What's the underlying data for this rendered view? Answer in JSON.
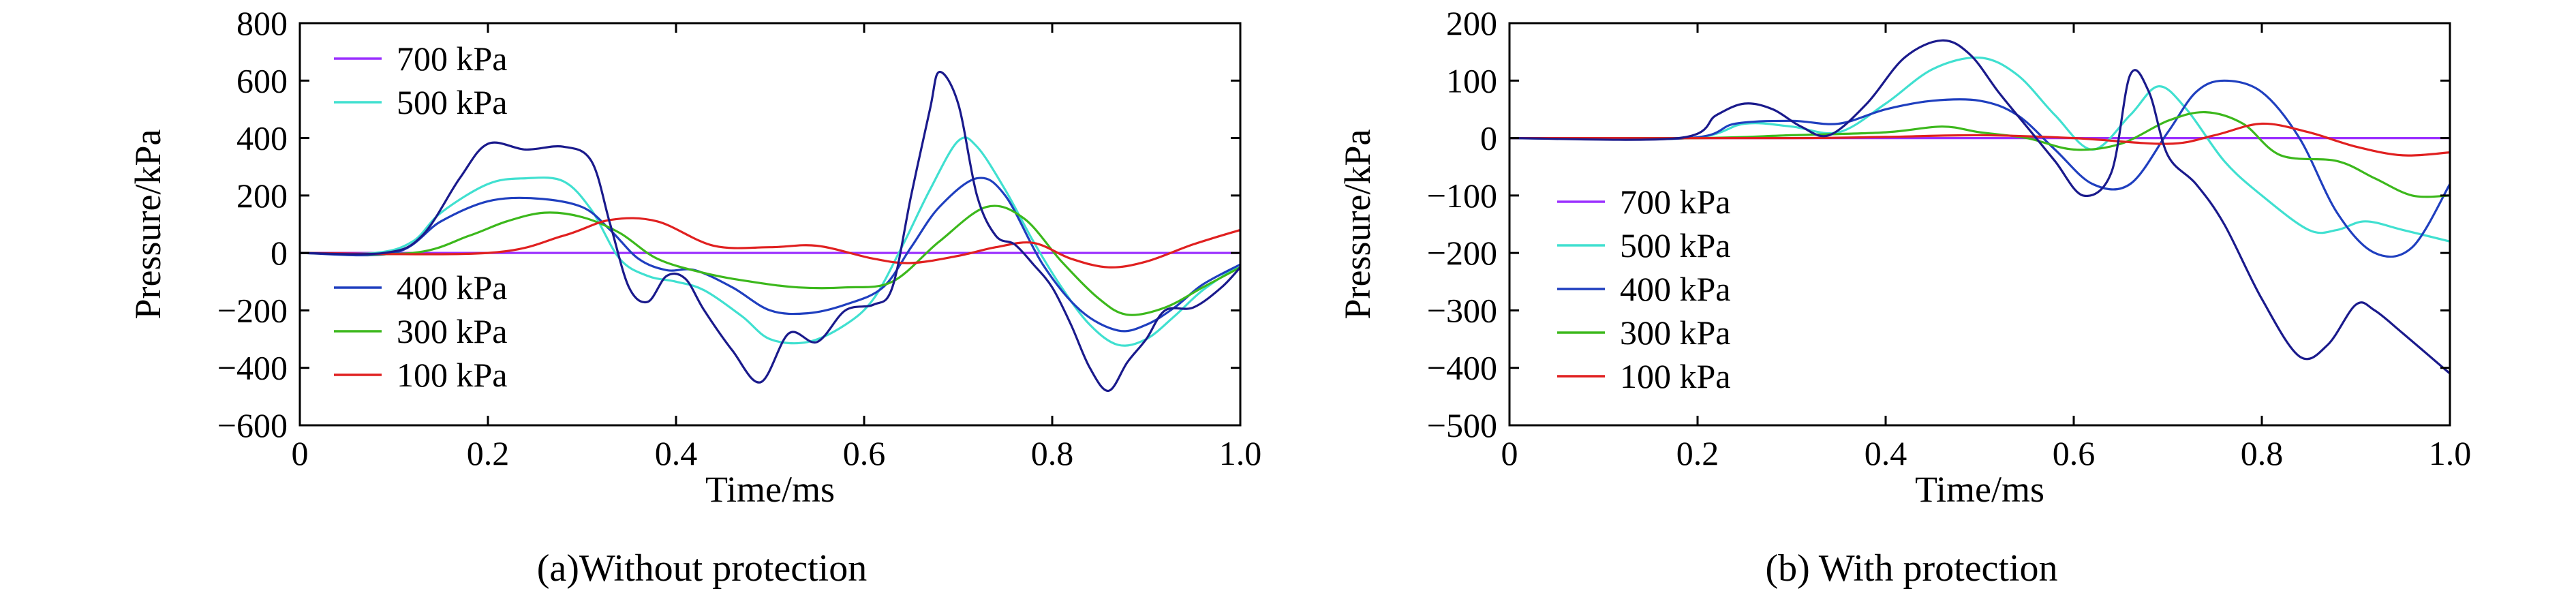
{
  "chart_data": [
    {
      "type": "line",
      "caption": "(a)Without protection",
      "xlabel": "Time/ms",
      "ylabel": "Pressure/kPa",
      "xlim": [
        0,
        1.0
      ],
      "ylim": [
        -600,
        800
      ],
      "xticks": [
        0,
        0.2,
        0.4,
        0.6,
        0.8,
        1.0
      ],
      "xtick_labels": [
        "0",
        "0.2",
        "0.4",
        "0.6",
        "0.8",
        "1.0"
      ],
      "yticks": [
        -600,
        -400,
        -200,
        0,
        200,
        400,
        600,
        800
      ],
      "ytick_labels": [
        "−600",
        "−400",
        "−200",
        "0",
        "200",
        "400",
        "600",
        "800"
      ],
      "legend_groups": [
        {
          "placement": "top-left",
          "entries": [
            "700 kPa",
            "500 kPa"
          ]
        },
        {
          "placement": "bottom-left",
          "entries": [
            "400 kPa",
            "300 kPa",
            "100 kPa"
          ]
        }
      ],
      "series": [
        {
          "name": "700 kPa",
          "color": "#9b30ff",
          "x": [
            0,
            0.1,
            0.2,
            0.4,
            0.6,
            0.8,
            1.0
          ],
          "y": [
            0,
            0,
            0,
            0,
            0,
            0,
            0
          ]
        },
        {
          "name": "500 kPa",
          "color": "#40e0d0",
          "x": [
            0,
            0.08,
            0.12,
            0.15,
            0.2,
            0.24,
            0.28,
            0.31,
            0.34,
            0.37,
            0.4,
            0.43,
            0.47,
            0.5,
            0.54,
            0.58,
            0.61,
            0.64,
            0.67,
            0.7,
            0.72,
            0.75,
            0.78,
            0.81,
            0.84,
            0.87,
            0.9,
            0.93,
            0.96,
            1.0
          ],
          "y": [
            0,
            0,
            40,
            140,
            240,
            260,
            250,
            150,
            -20,
            -80,
            -100,
            -130,
            -220,
            -300,
            -310,
            -250,
            -160,
            20,
            220,
            390,
            370,
            220,
            40,
            -120,
            -250,
            -320,
            -300,
            -220,
            -130,
            -40
          ]
        },
        {
          "name": "400 kPa",
          "color": "#1f3fbf",
          "x": [
            0,
            0.1,
            0.15,
            0.2,
            0.25,
            0.3,
            0.33,
            0.36,
            0.39,
            0.42,
            0.46,
            0.5,
            0.54,
            0.58,
            0.62,
            0.65,
            0.68,
            0.72,
            0.75,
            0.79,
            0.83,
            0.87,
            0.9,
            0.93,
            0.96,
            1.0
          ],
          "y": [
            0,
            0,
            110,
            180,
            190,
            160,
            80,
            -20,
            -60,
            -60,
            -120,
            -200,
            -210,
            -180,
            -120,
            20,
            160,
            260,
            200,
            -40,
            -200,
            -270,
            -250,
            -190,
            -110,
            -40
          ]
        },
        {
          "name": "300 kPa",
          "color": "#3cb81c",
          "x": [
            0,
            0.12,
            0.18,
            0.22,
            0.26,
            0.3,
            0.34,
            0.38,
            0.43,
            0.48,
            0.53,
            0.58,
            0.63,
            0.68,
            0.73,
            0.77,
            0.81,
            0.85,
            0.88,
            0.92,
            0.96,
            1.0
          ],
          "y": [
            0,
            0,
            60,
            110,
            140,
            125,
            70,
            -20,
            -70,
            -100,
            -120,
            -120,
            -100,
            40,
            160,
            120,
            -30,
            -160,
            -215,
            -190,
            -120,
            -50
          ]
        },
        {
          "name": "100 kPa",
          "color": "#e02020",
          "x": [
            0,
            0.2,
            0.28,
            0.33,
            0.38,
            0.44,
            0.5,
            0.55,
            0.61,
            0.65,
            0.7,
            0.74,
            0.78,
            0.82,
            0.86,
            0.9,
            0.95,
            1.0
          ],
          "y": [
            0,
            0,
            60,
            115,
            110,
            25,
            20,
            25,
            -20,
            -35,
            -10,
            20,
            35,
            -20,
            -50,
            -30,
            30,
            80
          ]
        },
        {
          "name": "",
          "color": "#1a1a8c",
          "x": [
            0,
            0.09,
            0.13,
            0.17,
            0.2,
            0.24,
            0.28,
            0.31,
            0.33,
            0.35,
            0.37,
            0.39,
            0.41,
            0.43,
            0.46,
            0.49,
            0.52,
            0.55,
            0.58,
            0.61,
            0.63,
            0.65,
            0.67,
            0.68,
            0.7,
            0.72,
            0.74,
            0.76,
            0.78,
            0.8,
            0.82,
            0.84,
            0.86,
            0.88,
            0.9,
            0.92,
            0.95,
            0.98,
            1.0
          ],
          "y": [
            0,
            0,
            60,
            260,
            380,
            360,
            370,
            320,
            100,
            -120,
            -170,
            -80,
            -90,
            -200,
            -340,
            -450,
            -280,
            -310,
            -200,
            -180,
            -120,
            200,
            500,
            630,
            520,
            200,
            60,
            30,
            -40,
            -120,
            -250,
            -400,
            -480,
            -380,
            -300,
            -200,
            -190,
            -120,
            -50
          ]
        }
      ]
    },
    {
      "type": "line",
      "caption": "(b) With protection",
      "xlabel": "Time/ms",
      "ylabel": "Pressure/kPa",
      "xlim": [
        0,
        1.0
      ],
      "ylim": [
        -500,
        200
      ],
      "xticks": [
        0,
        0.2,
        0.4,
        0.6,
        0.8,
        1.0
      ],
      "xtick_labels": [
        "0",
        "0.2",
        "0.4",
        "0.6",
        "0.8",
        "1.0"
      ],
      "yticks": [
        -500,
        -400,
        -300,
        -200,
        -100,
        0,
        100,
        200
      ],
      "ytick_labels": [
        "−500",
        "−400",
        "−300",
        "−200",
        "−100",
        "0",
        "100",
        "200"
      ],
      "legend_groups": [
        {
          "placement": "middle-left",
          "entries": [
            "700 kPa",
            "500 kPa",
            "400 kPa",
            "300 kPa",
            "100 kPa"
          ]
        }
      ],
      "series": [
        {
          "name": "700 kPa",
          "color": "#9b30ff",
          "x": [
            0,
            0.2,
            0.4,
            0.6,
            0.8,
            1.0
          ],
          "y": [
            0,
            0,
            0,
            0,
            0,
            0
          ]
        },
        {
          "name": "500 kPa",
          "color": "#40e0d0",
          "x": [
            0,
            0.19,
            0.25,
            0.3,
            0.35,
            0.4,
            0.45,
            0.5,
            0.54,
            0.58,
            0.62,
            0.66,
            0.69,
            0.72,
            0.76,
            0.8,
            0.85,
            0.88,
            0.91,
            0.95,
            1.0
          ],
          "y": [
            0,
            0,
            25,
            20,
            10,
            60,
            120,
            140,
            110,
            40,
            -20,
            40,
            90,
            50,
            -40,
            -100,
            -160,
            -160,
            -145,
            -160,
            -180
          ]
        },
        {
          "name": "400 kPa",
          "color": "#1f3fbf",
          "x": [
            0,
            0.19,
            0.24,
            0.3,
            0.35,
            0.4,
            0.45,
            0.5,
            0.54,
            0.58,
            0.62,
            0.66,
            0.7,
            0.73,
            0.76,
            0.8,
            0.84,
            0.88,
            0.92,
            0.96,
            1.0
          ],
          "y": [
            0,
            0,
            25,
            30,
            25,
            50,
            65,
            65,
            40,
            -20,
            -80,
            -80,
            10,
            80,
            100,
            80,
            0,
            -130,
            -200,
            -190,
            -80
          ]
        },
        {
          "name": "300 kPa",
          "color": "#3cb81c",
          "x": [
            0,
            0.2,
            0.3,
            0.4,
            0.46,
            0.5,
            0.55,
            0.6,
            0.65,
            0.7,
            0.74,
            0.78,
            0.82,
            0.88,
            0.92,
            0.96,
            1.0
          ],
          "y": [
            0,
            0,
            5,
            10,
            20,
            10,
            0,
            -20,
            -10,
            30,
            45,
            25,
            -30,
            -40,
            -70,
            -100,
            -100
          ]
        },
        {
          "name": "100 kPa",
          "color": "#e02020",
          "x": [
            0,
            0.3,
            0.4,
            0.5,
            0.6,
            0.7,
            0.75,
            0.8,
            0.85,
            0.9,
            0.95,
            1.0
          ],
          "y": [
            0,
            0,
            2,
            5,
            0,
            -10,
            5,
            25,
            10,
            -15,
            -30,
            -25
          ]
        },
        {
          "name": "",
          "color": "#1a1a8c",
          "x": [
            0,
            0.18,
            0.22,
            0.25,
            0.28,
            0.31,
            0.34,
            0.38,
            0.42,
            0.46,
            0.49,
            0.52,
            0.55,
            0.58,
            0.61,
            0.64,
            0.66,
            0.68,
            0.7,
            0.73,
            0.76,
            0.8,
            0.84,
            0.87,
            0.9,
            0.92,
            0.95,
            1.0
          ],
          "y": [
            0,
            0,
            40,
            60,
            50,
            20,
            5,
            60,
            140,
            170,
            145,
            80,
            20,
            -40,
            -100,
            -60,
            110,
            80,
            -30,
            -80,
            -150,
            -280,
            -380,
            -360,
            -290,
            -300,
            -340,
            -410
          ]
        }
      ]
    }
  ]
}
